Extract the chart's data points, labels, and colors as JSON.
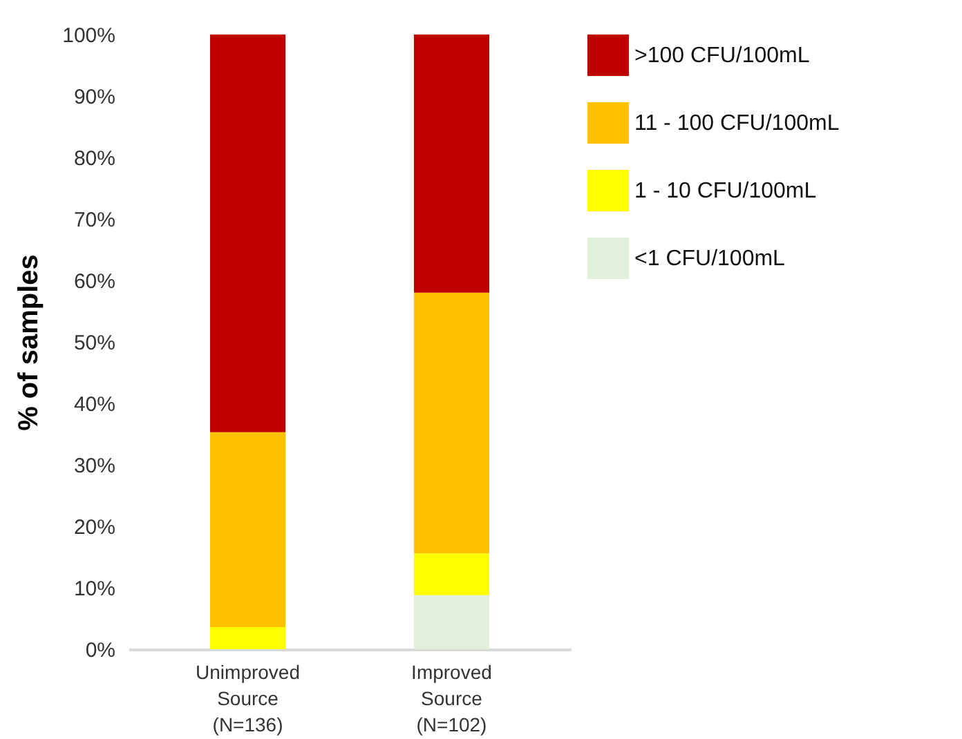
{
  "chart_data": {
    "type": "bar",
    "stacked": true,
    "ylabel": "% of samples",
    "categories": [
      "Unimproved\nSource\n(N=136)",
      "Improved\nSource\n(N=102)"
    ],
    "series": [
      {
        "name": "<1 CFU/100mL",
        "color": "#e2efda",
        "values": [
          0,
          8.8
        ]
      },
      {
        "name": "1 - 10 CFU/100mL",
        "color": "#ffff00",
        "values": [
          3.6,
          6.8
        ]
      },
      {
        "name": "11 - 100 CFU/100mL",
        "color": "#ffc000",
        "values": [
          31.7,
          42.4
        ]
      },
      {
        "name": ">100 CFU/100mL",
        "color": "#c00000",
        "values": [
          64.7,
          42.0
        ]
      }
    ],
    "ylim": [
      0,
      100
    ],
    "yticks": [
      {
        "value": 0,
        "label": "0%"
      },
      {
        "value": 10,
        "label": "10%"
      },
      {
        "value": 20,
        "label": "20%"
      },
      {
        "value": 30,
        "label": "30%"
      },
      {
        "value": 40,
        "label": "40%"
      },
      {
        "value": 50,
        "label": "50%"
      },
      {
        "value": 60,
        "label": "60%"
      },
      {
        "value": 70,
        "label": "70%"
      },
      {
        "value": 80,
        "label": "80%"
      },
      {
        "value": 90,
        "label": "90%"
      },
      {
        "value": 100,
        "label": "100%"
      }
    ],
    "grid": false,
    "legend": "right"
  }
}
